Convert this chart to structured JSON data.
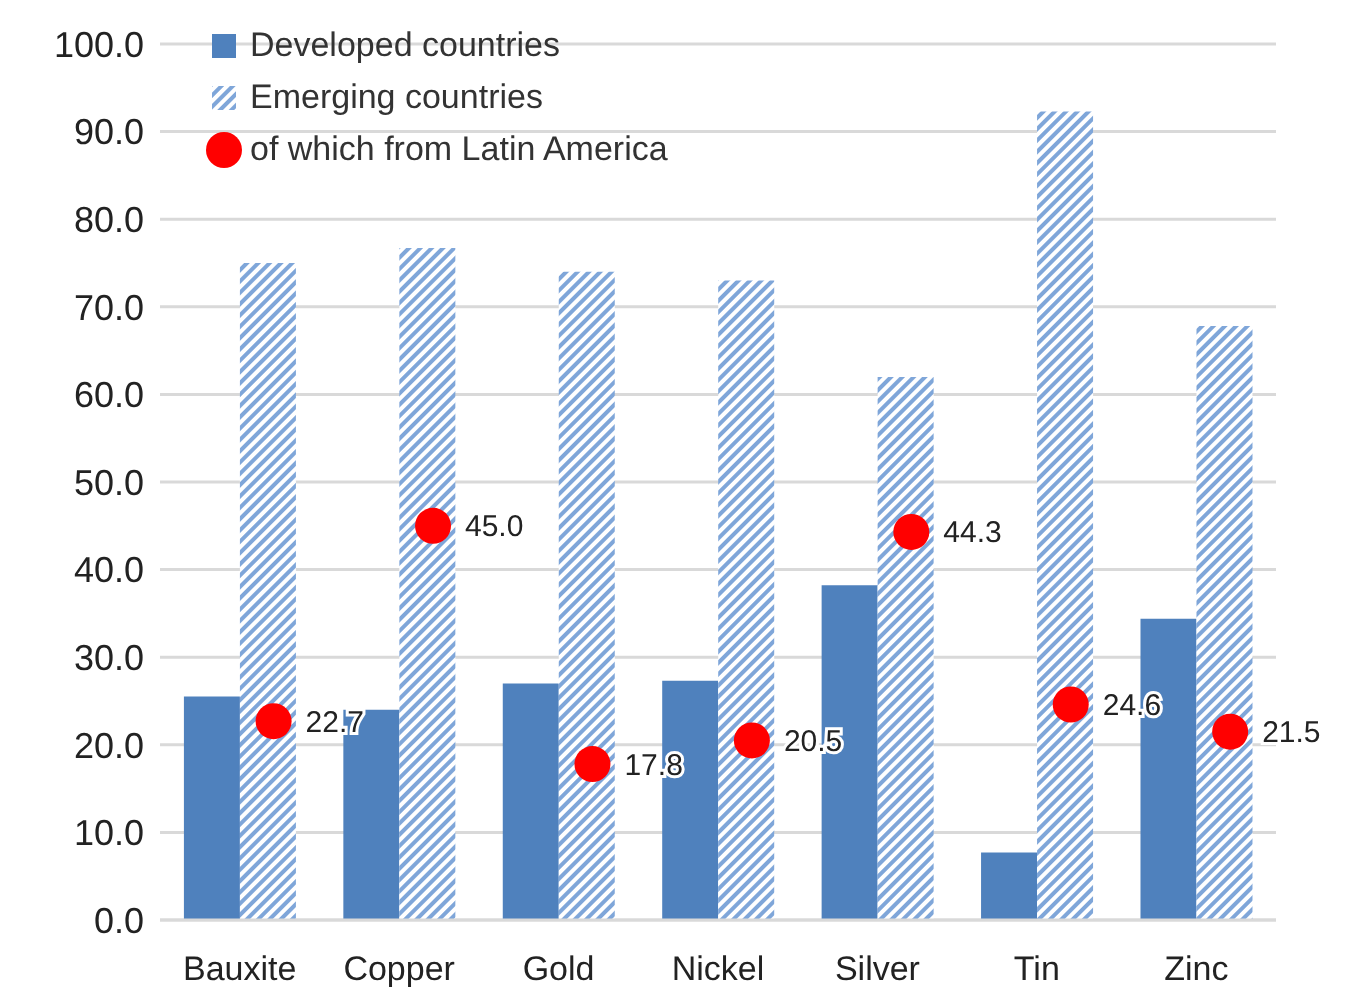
{
  "chart_data": {
    "type": "bar",
    "categories": [
      "Bauxite",
      "Copper",
      "Gold",
      "Nickel",
      "Silver",
      "Tin",
      "Zinc"
    ],
    "series": [
      {
        "name": "Developed countries",
        "color": "#4f81bd",
        "values": [
          25.5,
          24.0,
          27.0,
          27.3,
          38.2,
          7.7,
          34.4
        ]
      },
      {
        "name": "Emerging countries",
        "color": "#7fa6d9",
        "values": [
          75.0,
          76.7,
          74.0,
          73.0,
          62.0,
          92.3,
          67.8
        ]
      },
      {
        "name": "of which from Latin America",
        "type": "scatter",
        "color": "#ff0000",
        "marker": "circle",
        "values": [
          22.7,
          45.0,
          17.8,
          20.5,
          44.3,
          24.6,
          21.5
        ],
        "value_labels": [
          "22.7",
          "45.0",
          "17.8",
          "20.5",
          "44.3",
          "24.6",
          "21.5"
        ]
      }
    ],
    "ylim": [
      0,
      100
    ],
    "yticks": [
      {
        "value": 0,
        "label": "0.0"
      },
      {
        "value": 10,
        "label": "10.0"
      },
      {
        "value": 20,
        "label": "20.0"
      },
      {
        "value": 30,
        "label": "30.0"
      },
      {
        "value": 40,
        "label": "40.0"
      },
      {
        "value": 50,
        "label": "50.0"
      },
      {
        "value": 60,
        "label": "60.0"
      },
      {
        "value": 70,
        "label": "70.0"
      },
      {
        "value": 80,
        "label": "80.0"
      },
      {
        "value": 90,
        "label": "90.0"
      },
      {
        "value": 100,
        "label": "100.0"
      }
    ],
    "grid": "y",
    "legend": "top left"
  }
}
